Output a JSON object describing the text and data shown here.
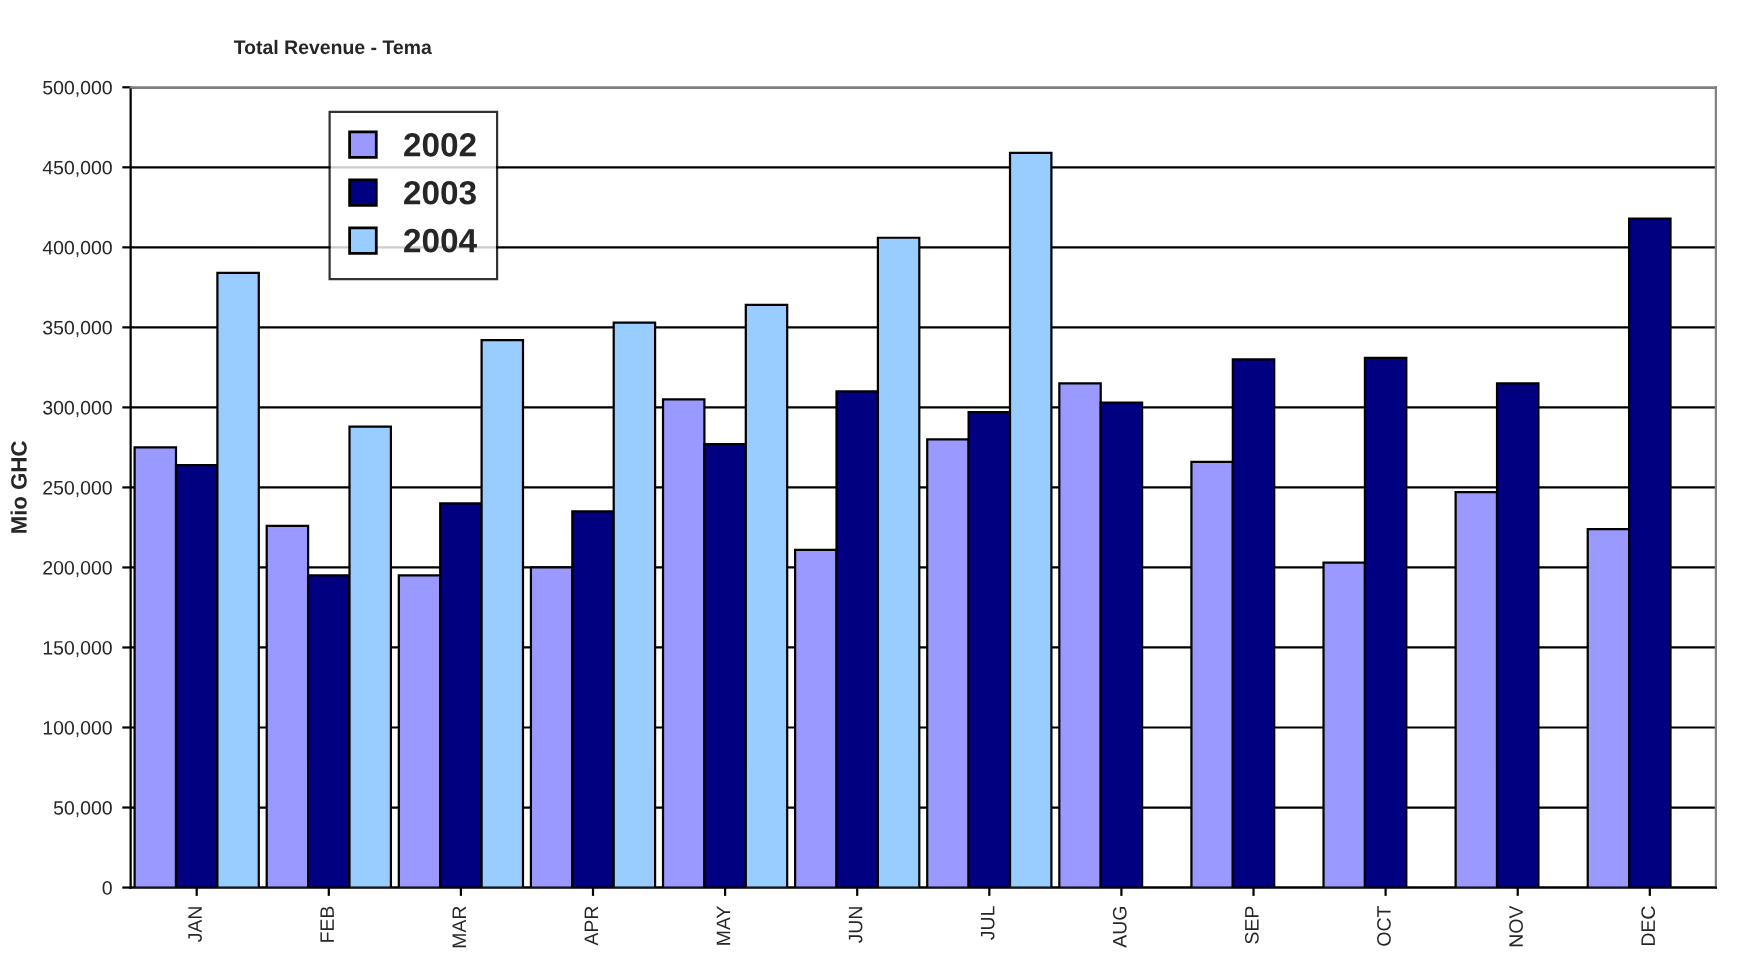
{
  "chart_data": {
    "type": "bar",
    "title": "Total Revenue - Tema",
    "ylabel": "Mio GHC",
    "categories": [
      "JAN",
      "FEB",
      "MAR",
      "APR",
      "MAY",
      "JUN",
      "JUL",
      "AUG",
      "SEP",
      "OCT",
      "NOV",
      "DEC"
    ],
    "series": [
      {
        "name": "2002",
        "color": "#9999ff",
        "values": [
          275000,
          226000,
          195000,
          200000,
          305000,
          211000,
          280000,
          315000,
          266000,
          203000,
          247000,
          224000
        ]
      },
      {
        "name": "2003",
        "color": "#000080",
        "values": [
          264000,
          195000,
          240000,
          235000,
          277000,
          310000,
          297000,
          303000,
          330000,
          331000,
          315000,
          418000
        ]
      },
      {
        "name": "2004",
        "color": "#99ccff",
        "values": [
          384000,
          288000,
          342000,
          353000,
          364000,
          406000,
          459000,
          null,
          null,
          null,
          null,
          null
        ]
      }
    ],
    "ylim": [
      0,
      500000
    ],
    "yticks": [
      {
        "value": 0,
        "label": "0"
      },
      {
        "value": 50000,
        "label": "50,000"
      },
      {
        "value": 100000,
        "label": "100,000"
      },
      {
        "value": 150000,
        "label": "150,000"
      },
      {
        "value": 200000,
        "label": "200,000"
      },
      {
        "value": 250000,
        "label": "250,000"
      },
      {
        "value": 300000,
        "label": "300,000"
      },
      {
        "value": 350000,
        "label": "350,000"
      },
      {
        "value": 400000,
        "label": "400,000"
      },
      {
        "value": 450000,
        "label": "450,000"
      },
      {
        "value": 500000,
        "label": "500,000"
      }
    ],
    "grid": "y",
    "legend": "top left"
  }
}
